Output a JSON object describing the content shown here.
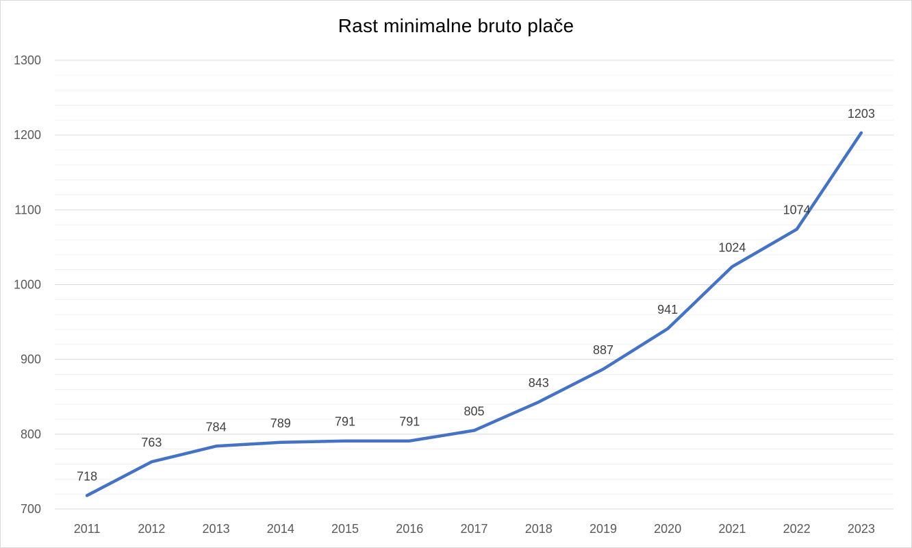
{
  "chart_data": {
    "type": "line",
    "title": "Rast minimalne bruto plače",
    "xlabel": "",
    "ylabel": "",
    "categories": [
      "2011",
      "2012",
      "2013",
      "2014",
      "2015",
      "2016",
      "2017",
      "2018",
      "2019",
      "2020",
      "2021",
      "2022",
      "2023"
    ],
    "series": [
      {
        "values": [
          718,
          763,
          784,
          789,
          791,
          791,
          805,
          843,
          887,
          941,
          1024,
          1074,
          1203
        ],
        "color": "#4472c4",
        "data_labels": true
      }
    ],
    "ylim": [
      700,
      1300
    ],
    "y_major_ticks": [
      700,
      800,
      900,
      1000,
      1100,
      1200,
      1300
    ],
    "y_minor_step": 20,
    "grid": true,
    "legend": "none"
  }
}
